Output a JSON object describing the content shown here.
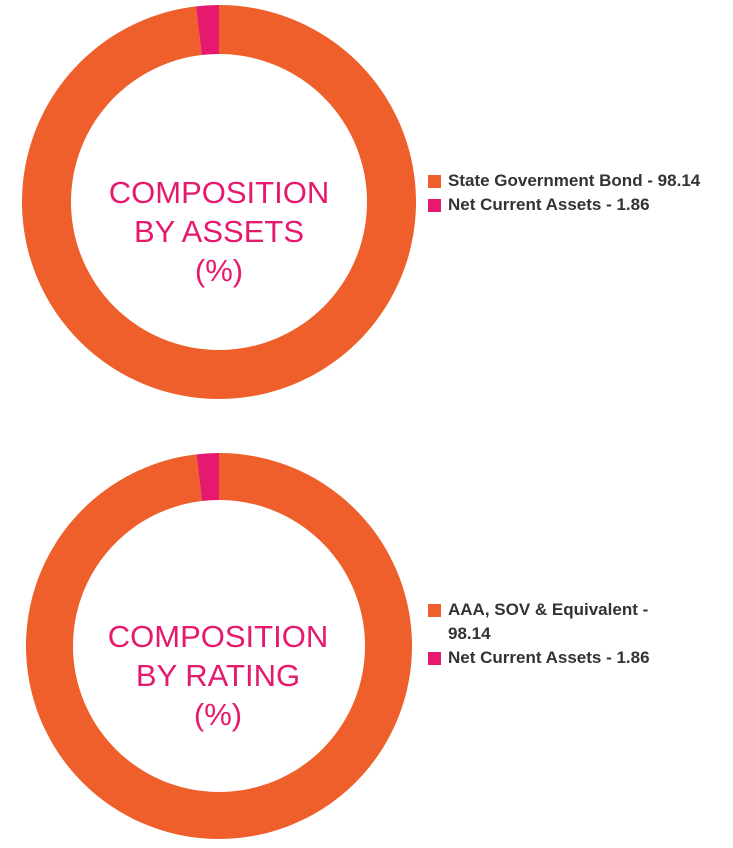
{
  "colors": {
    "primary": "#ee5f2b",
    "secondary": "#e5196e",
    "legend_text": "#333333"
  },
  "chart_data": [
    {
      "type": "donut",
      "center_text": [
        "COMPOSITION",
        "BY ASSETS",
        "(%)"
      ],
      "slices": [
        {
          "label": "State Government Bond - 98.14",
          "value": 98.14,
          "color": "#ee5f2b"
        },
        {
          "label": "Net Current Assets - 1.86",
          "value": 1.86,
          "color": "#e5196e"
        }
      ],
      "legend_position": "right"
    },
    {
      "type": "donut",
      "center_text": [
        "COMPOSITION",
        "BY RATING",
        "(%)"
      ],
      "slices": [
        {
          "label": "AAA, SOV & Equivalent - 98.14",
          "value": 98.14,
          "color": "#ee5f2b"
        },
        {
          "label": "Net Current Assets - 1.86",
          "value": 1.86,
          "color": "#e5196e"
        }
      ],
      "legend_position": "right"
    }
  ]
}
